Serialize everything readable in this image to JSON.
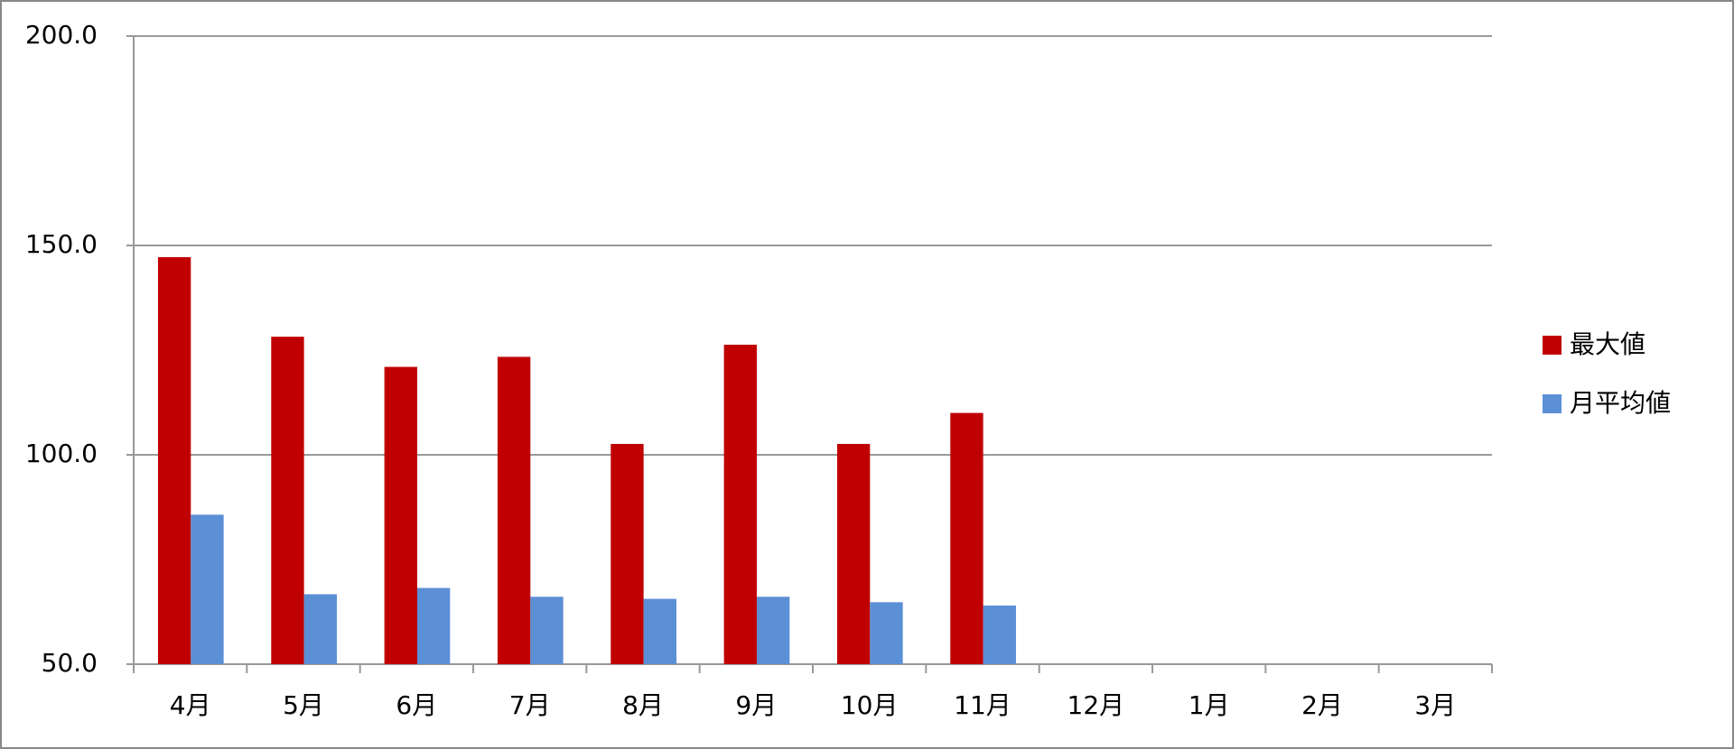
{
  "chart_data": {
    "type": "bar",
    "categories": [
      "4月",
      "5月",
      "6月",
      "7月",
      "8月",
      "9月",
      "10月",
      "11月",
      "12月",
      "1月",
      "2月",
      "3月"
    ],
    "series": [
      {
        "name": "最大値",
        "color": "#c00000",
        "values": [
          147.2,
          128.2,
          121.0,
          123.4,
          102.6,
          126.3,
          102.6,
          110.0,
          null,
          null,
          null,
          null
        ]
      },
      {
        "name": "月平均値",
        "color": "#5b8fd6",
        "values": [
          85.7,
          66.7,
          68.2,
          66.1,
          65.6,
          66.1,
          64.8,
          64.0,
          null,
          null,
          null,
          null
        ]
      }
    ],
    "ylim": [
      50,
      200
    ],
    "yticks": [
      {
        "value": 50,
        "label": "50.0"
      },
      {
        "value": 100,
        "label": "100.0"
      },
      {
        "value": 150,
        "label": "150.0"
      },
      {
        "value": 200,
        "label": "200.0"
      }
    ],
    "grid": true,
    "legend": "right"
  }
}
